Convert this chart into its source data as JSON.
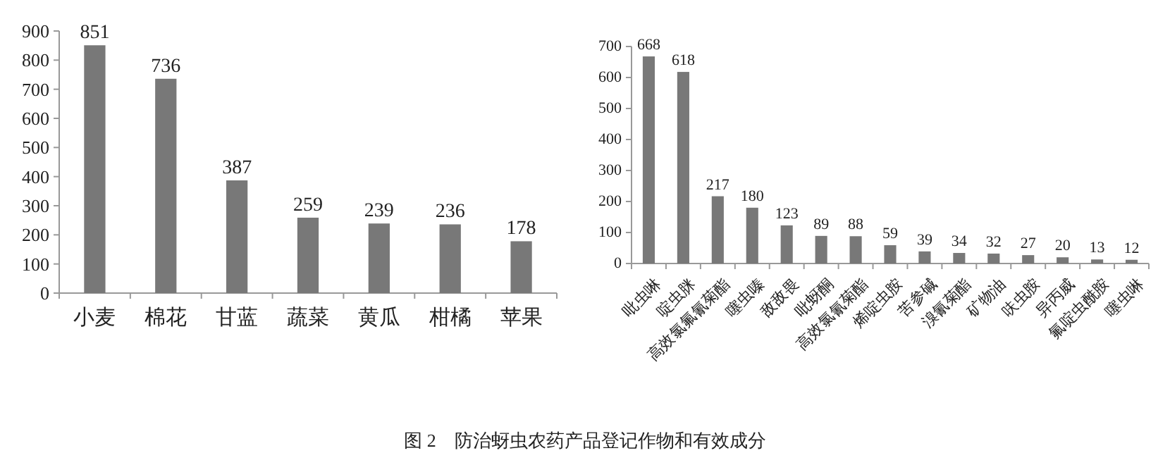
{
  "chart_data": [
    {
      "type": "bar",
      "categories": [
        "小麦",
        "棉花",
        "甘蓝",
        "蔬菜",
        "黄瓜",
        "柑橘",
        "苹果"
      ],
      "series": [
        {
          "color": "#787878",
          "values": [
            851,
            736,
            387,
            259,
            239,
            236,
            178
          ]
        }
      ],
      "ylim": [
        0,
        900
      ],
      "yticks": [
        0,
        100,
        200,
        300,
        400,
        500,
        600,
        700,
        800,
        900
      ],
      "data_labels": true,
      "annotations": [
        "图 2　防治蚜虫农药产品登记作物和有效成分"
      ]
    },
    {
      "type": "bar",
      "categories": [
        "吡虫啉",
        "啶虫脒",
        "高效氯氟氰菊酯",
        "噻虫嗪",
        "敌敌畏",
        "吡蚜酮",
        "高效氯氰菊酯",
        "烯啶虫胺",
        "苦参碱",
        "溴氰菊酯",
        "矿物油",
        "呋虫胺",
        "异丙威",
        "氟啶虫酰胺",
        "噻虫啉"
      ],
      "series": [
        {
          "color": "#787878",
          "values": [
            668,
            618,
            217,
            180,
            123,
            89,
            88,
            59,
            39,
            34,
            32,
            27,
            20,
            13,
            12
          ]
        }
      ],
      "ylim": [
        0,
        700
      ],
      "yticks": [
        0,
        100,
        200,
        300,
        400,
        500,
        600,
        700
      ],
      "data_labels": true
    }
  ]
}
